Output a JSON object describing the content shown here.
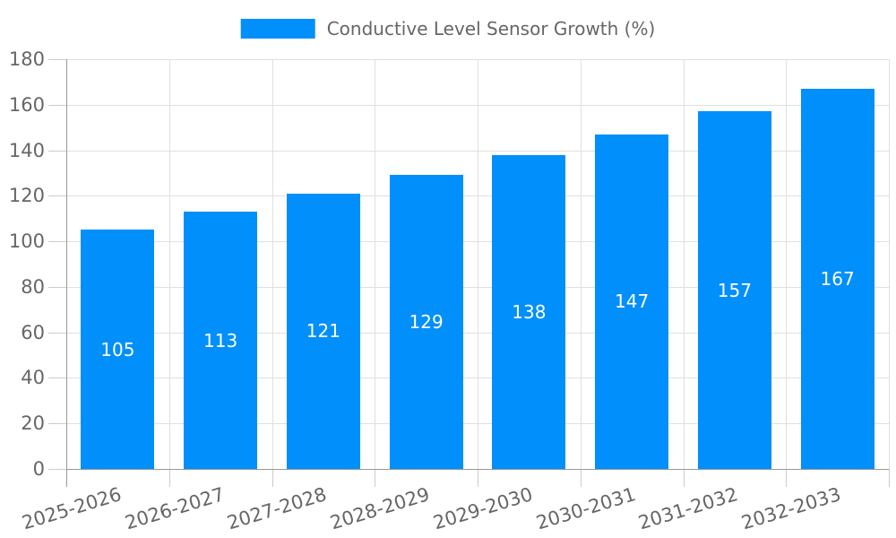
{
  "legend": {
    "label": "Conductive Level Sensor Growth (%)",
    "position": "top"
  },
  "chart_data": {
    "type": "bar",
    "title": "Conductive Level Sensor Growth (%)",
    "categories": [
      "2025-2026",
      "2026-2027",
      "2027-2028",
      "2028-2029",
      "2029-2030",
      "2030-2031",
      "2031-2032",
      "2032-2033"
    ],
    "values": [
      105,
      113,
      121,
      129,
      138,
      147,
      157,
      167
    ],
    "xlabel": "",
    "ylabel": "",
    "ylim": [
      0,
      180
    ],
    "ytick_step": 20,
    "yticks": [
      0,
      20,
      40,
      60,
      80,
      100,
      120,
      140,
      160,
      180
    ],
    "ytick_labels": [
      "0",
      "20",
      "40",
      "60",
      "80",
      "100",
      "120",
      "140",
      "160",
      "180"
    ],
    "grid": true,
    "legend_position": "top",
    "value_labels": "inside-center",
    "colors": {
      "bar": "#008FFB",
      "axis_text": "#666666",
      "value_label": "#ffffff",
      "grid_line": "#e0e0e0",
      "tick_line": "#cccccc",
      "axis_line": "#999999",
      "background": "#ffffff"
    }
  }
}
